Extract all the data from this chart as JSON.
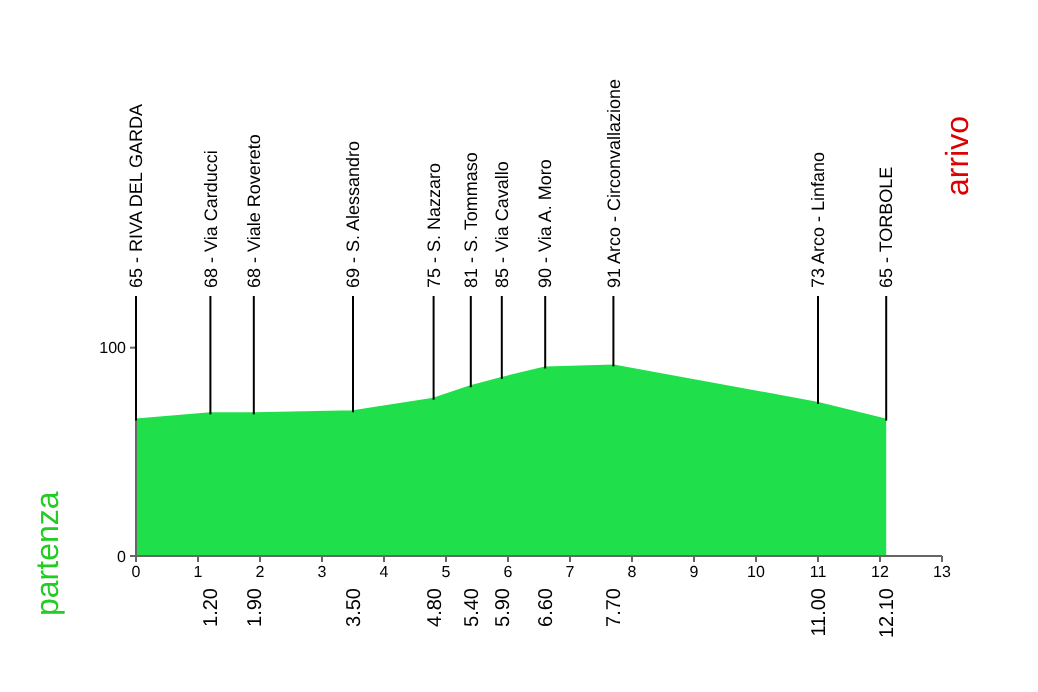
{
  "chart_data": {
    "type": "area",
    "x": [
      0,
      1.2,
      1.9,
      3.5,
      4.8,
      5.4,
      5.9,
      6.6,
      7.7,
      11.0,
      12.1
    ],
    "series": [
      {
        "color": "#1fe04a",
        "values": [
          65,
          68,
          68,
          69,
          75,
          81,
          85,
          90,
          91,
          73,
          65
        ]
      }
    ],
    "xlim": [
      0,
      13
    ],
    "xticks": [
      0,
      1,
      2,
      3,
      4,
      5,
      6,
      7,
      8,
      9,
      10,
      11,
      12,
      13
    ],
    "ylim": [
      0,
      120
    ],
    "yticks": [
      0,
      100
    ],
    "annotations": [
      "partenza",
      "arrivo",
      {
        "text": "65 - RIVA DEL GARDA",
        "x": 0,
        "y": 65
      },
      {
        "text": "68 - Via Carducci",
        "x": 1.2,
        "y": 68
      },
      {
        "text": "68 - Viale Rovereto",
        "x": 1.9,
        "y": 68
      },
      {
        "text": "69 - S. Alessandro",
        "x": 3.5,
        "y": 69
      },
      {
        "text": "75 - S. Nazzaro",
        "x": 4.8,
        "y": 75
      },
      {
        "text": "81 - S. Tommaso",
        "x": 5.4,
        "y": 81
      },
      {
        "text": "85 - Via Cavallo",
        "x": 5.9,
        "y": 85
      },
      {
        "text": "90 - Via A. Moro",
        "x": 6.6,
        "y": 90
      },
      {
        "text": "91 Arco - Circonvallazione",
        "x": 7.7,
        "y": 91
      },
      {
        "text": "73 Arco - Linfano",
        "x": 11.0,
        "y": 73
      },
      {
        "text": "65 - TORBOLE",
        "x": 12.1,
        "y": 65
      },
      {
        "text": "1.20",
        "x": 1.2,
        "y": 0
      },
      {
        "text": "1.90",
        "x": 1.9,
        "y": 0
      },
      {
        "text": "3.50",
        "x": 3.5,
        "y": 0
      },
      {
        "text": "4.80",
        "x": 4.8,
        "y": 0
      },
      {
        "text": "5.40",
        "x": 5.4,
        "y": 0
      },
      {
        "text": "5.90",
        "x": 5.9,
        "y": 0
      },
      {
        "text": "6.60",
        "x": 6.6,
        "y": 0
      },
      {
        "text": "7.70",
        "x": 7.7,
        "y": 0
      },
      {
        "text": "11.00",
        "x": 11.0,
        "y": 0
      },
      {
        "text": "12.10",
        "x": 12.1,
        "y": 0
      }
    ]
  }
}
